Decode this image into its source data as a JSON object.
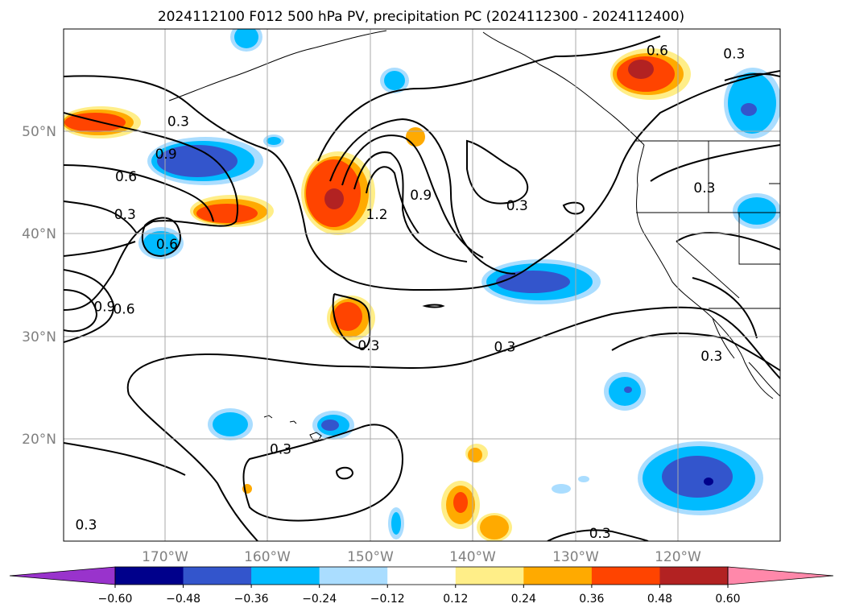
{
  "title": "2024112100 F012 500 hPa PV, precipitation PC (2024112300 - 2024112400)",
  "map": {
    "lon_range": [
      -180,
      -110
    ],
    "lat_range": [
      10,
      60
    ],
    "lat_labels": [
      {
        "lat": 50,
        "text": "50°N"
      },
      {
        "lat": 40,
        "text": "40°N"
      },
      {
        "lat": 30,
        "text": "30°N"
      },
      {
        "lat": 20,
        "text": "20°N"
      }
    ],
    "lon_labels": [
      {
        "lon": -170,
        "text": "170°W"
      },
      {
        "lon": -160,
        "text": "160°W"
      },
      {
        "lon": -150,
        "text": "150°W"
      },
      {
        "lon": -140,
        "text": "140°W"
      },
      {
        "lon": -130,
        "text": "130°W"
      },
      {
        "lon": -120,
        "text": "120°W"
      }
    ],
    "contour_labels": [
      {
        "text": "0.3",
        "lon": -168.8,
        "lat": 51.0
      },
      {
        "text": "0.9",
        "lon": -170.0,
        "lat": 47.8
      },
      {
        "text": "0.6",
        "lon": -173.9,
        "lat": 45.6
      },
      {
        "text": "0.3",
        "lon": -174.0,
        "lat": 41.9
      },
      {
        "text": "0.6",
        "lon": -169.9,
        "lat": 39.0
      },
      {
        "text": "0.9",
        "lon": -176.0,
        "lat": 32.9
      },
      {
        "text": "0.6",
        "lon": -174.1,
        "lat": 32.7
      },
      {
        "text": "1.2",
        "lon": -149.4,
        "lat": 41.9
      },
      {
        "text": "0.9",
        "lon": -145.1,
        "lat": 43.8
      },
      {
        "text": "0.3",
        "lon": -150.2,
        "lat": 29.1
      },
      {
        "text": "0.3",
        "lon": -158.8,
        "lat": 19.0
      },
      {
        "text": "0.3",
        "lon": -135.7,
        "lat": 42.8
      },
      {
        "text": "0.3",
        "lon": -136.9,
        "lat": 29.0
      },
      {
        "text": "0.3",
        "lon": -114.5,
        "lat": 57.6
      },
      {
        "text": "0.6",
        "lon": -122.0,
        "lat": 57.9
      },
      {
        "text": "0.3",
        "lon": -117.4,
        "lat": 44.5
      },
      {
        "text": "0.3",
        "lon": -116.7,
        "lat": 28.1
      },
      {
        "text": "0.3",
        "lon": -177.8,
        "lat": 11.6
      },
      {
        "text": "0.3",
        "lon": -127.6,
        "lat": 10.8
      }
    ]
  },
  "colorbar": {
    "levels": [
      "−0.60",
      "−0.48",
      "−0.36",
      "−0.24",
      "−0.12",
      "0.12",
      "0.24",
      "0.36",
      "0.48",
      "0.60"
    ],
    "colors": [
      "#9933cc",
      "#00008b",
      "#3355cc",
      "#00bbff",
      "#aaddff",
      "#ffffff",
      "#ffee88",
      "#ffaa00",
      "#ff4400",
      "#b22222",
      "#ff88aa"
    ]
  },
  "colors": {
    "neg_light": "#aaddff",
    "neg_mid": "#00bbff",
    "neg_dark": "#3355cc",
    "neg_darkest": "#00008b",
    "pos_light": "#ffee88",
    "pos_mid": "#ffaa00",
    "pos_dark": "#ff4400",
    "pos_darkest": "#b22222"
  }
}
